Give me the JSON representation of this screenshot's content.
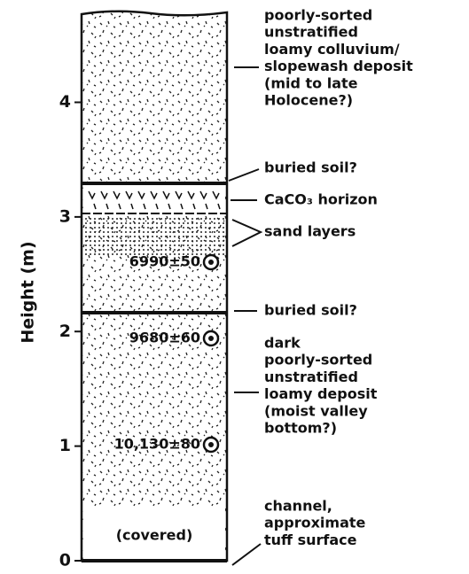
{
  "y_axis": {
    "label": "Height (m)",
    "ylim": [
      0,
      4.8
    ],
    "yticks": [
      0,
      1,
      2,
      3,
      4
    ]
  },
  "column": {
    "covered": "(covered)",
    "dates": [
      "6990±50",
      "9680±60",
      "10,130±80"
    ]
  },
  "annotations": [
    {
      "lines": [
        "poorly-sorted",
        "unstratified",
        "loamy colluvium/",
        "slopewash deposit",
        "(mid to late",
        " Holocene?)"
      ]
    },
    {
      "lines": [
        "buried soil?"
      ]
    },
    {
      "lines": [
        "CaCO₃ horizon"
      ]
    },
    {
      "lines": [
        "sand layers"
      ]
    },
    {
      "lines": [
        "buried soil?"
      ]
    },
    {
      "lines": [
        "dark",
        "poorly-sorted",
        "unstratified",
        "loamy deposit",
        "(moist valley",
        " bottom?)"
      ]
    },
    {
      "lines": [
        "channel,",
        "approximate",
        "tuff surface"
      ]
    }
  ]
}
